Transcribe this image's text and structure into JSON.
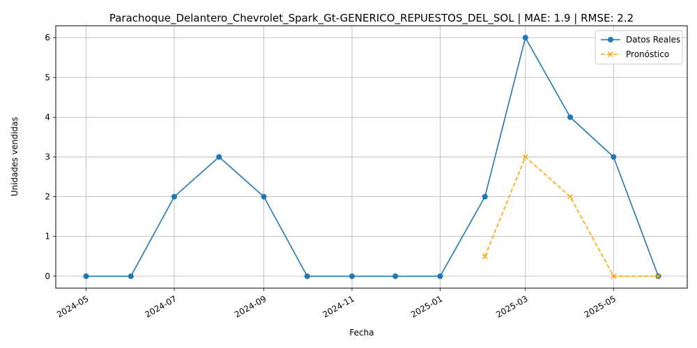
{
  "chart_data": {
    "type": "line",
    "title": "Parachoque_Delantero_Chevrolet_Spark_Gt-GENERICO_REPUESTOS_DEL_SOL | MAE: 1.9 | RMSE: 2.2",
    "xlabel": "Fecha",
    "ylabel": "Unidades vendidas",
    "x_ticks": [
      "2024-05",
      "2024-07",
      "2024-09",
      "2024-11",
      "2025-01",
      "2025-03",
      "2025-05"
    ],
    "y_ticks": [
      "0",
      "1",
      "2",
      "3",
      "4",
      "5",
      "6"
    ],
    "xlim": [
      "2024-04-10",
      "2025-06-21"
    ],
    "ylim": [
      -0.3,
      6.3
    ],
    "grid": true,
    "legend_position": "top-right",
    "series": [
      {
        "name": "Datos Reales",
        "color": "#1f77b4",
        "style": "solid",
        "marker": "circle",
        "x": [
          "2024-05-01",
          "2024-06-01",
          "2024-07-01",
          "2024-08-01",
          "2024-09-01",
          "2024-10-01",
          "2024-11-01",
          "2024-12-01",
          "2025-01-01",
          "2025-02-01",
          "2025-03-01",
          "2025-04-01",
          "2025-05-01",
          "2025-06-01"
        ],
        "y": [
          0,
          0,
          2,
          3,
          2,
          0,
          0,
          0,
          0,
          2,
          6,
          4,
          3,
          0
        ]
      },
      {
        "name": "Pronóstico",
        "color": "#ffa500",
        "style": "dashed",
        "marker": "x",
        "x": [
          "2025-02-01",
          "2025-03-01",
          "2025-04-01",
          "2025-05-01",
          "2025-06-01"
        ],
        "y": [
          0.5,
          3,
          2,
          0,
          0
        ]
      }
    ]
  }
}
